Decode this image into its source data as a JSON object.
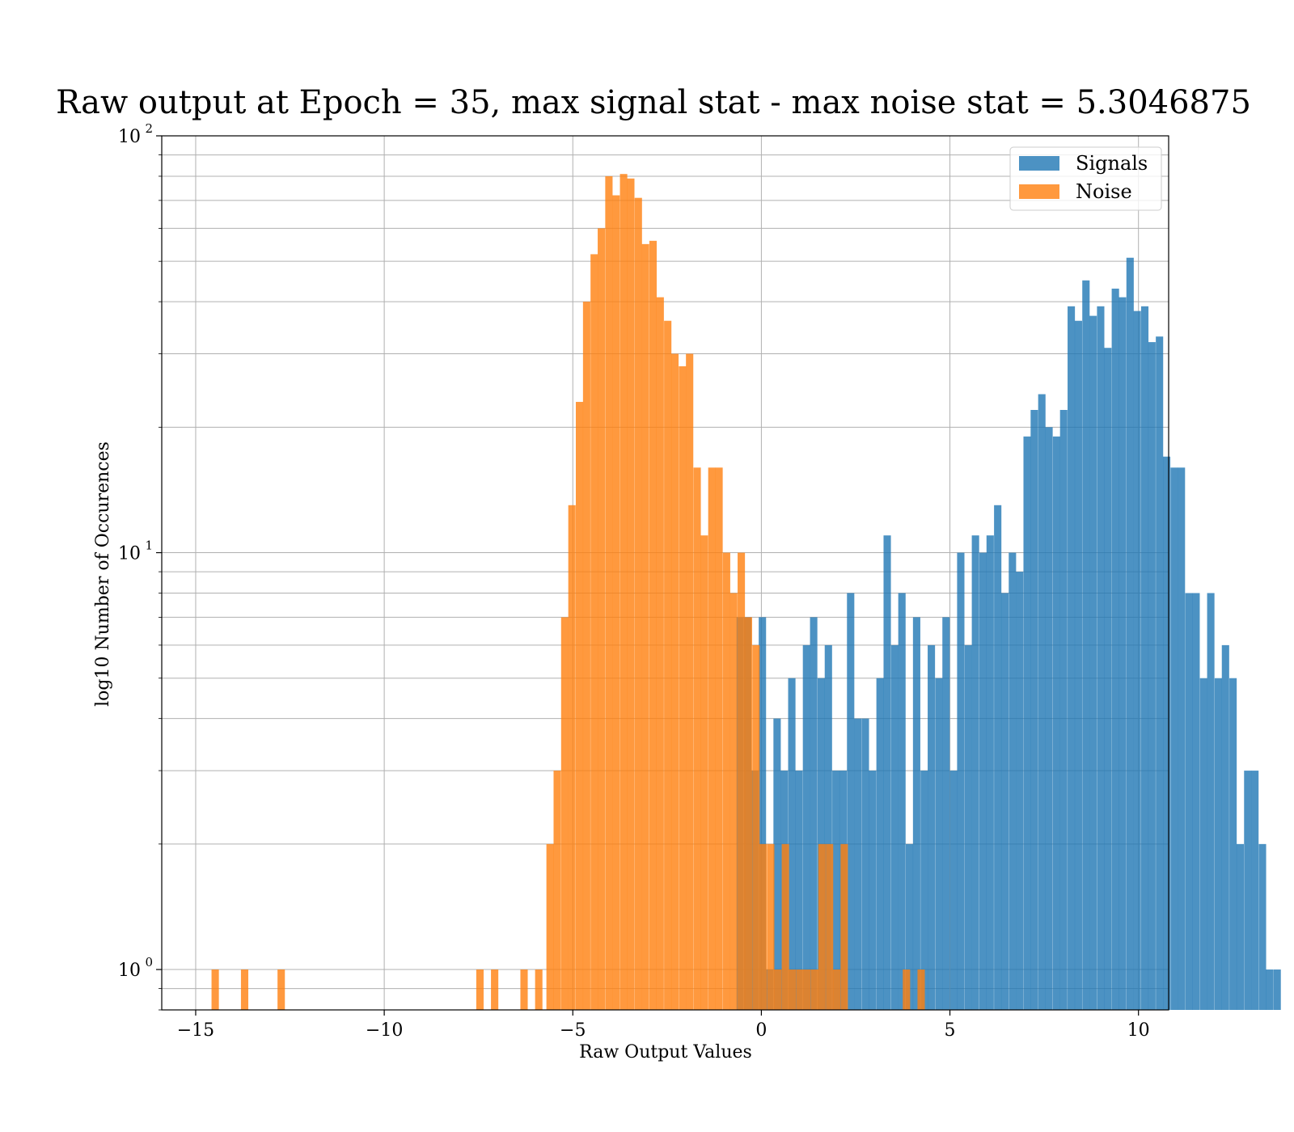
{
  "chart_data": {
    "type": "bar",
    "title": "Raw output at Epoch = 35, max signal stat - max noise stat = 5.3046875",
    "xlabel": "Raw Output Values",
    "ylabel": "log10 Number of Occurences",
    "xlim": [
      -15.9,
      10.8
    ],
    "ylim": [
      0.8,
      100
    ],
    "yscale": "log",
    "grid": true,
    "legend_position": "top-right",
    "xticks": [
      -15,
      -10,
      -5,
      0,
      5,
      10
    ],
    "xtick_labels": [
      "−15",
      "−10",
      "−5",
      "0",
      "5",
      "10"
    ],
    "yticks": [
      1,
      10,
      100
    ],
    "ytick_labels": [
      {
        "base": "10",
        "exp": "0"
      },
      {
        "base": "10",
        "exp": "1"
      },
      {
        "base": "10",
        "exp": "2"
      }
    ],
    "bin_width": 0.195,
    "series": [
      {
        "name": "Signals",
        "color": "#1f77b4",
        "bins": [
          [
            -0.66,
            7
          ],
          [
            -0.46,
            7
          ],
          [
            -0.27,
            3
          ],
          [
            -0.07,
            7
          ],
          [
            0.12,
            1
          ],
          [
            0.32,
            4
          ],
          [
            0.51,
            3
          ],
          [
            0.71,
            5
          ],
          [
            0.9,
            3
          ],
          [
            1.1,
            6
          ],
          [
            1.29,
            7
          ],
          [
            1.49,
            5
          ],
          [
            1.68,
            6
          ],
          [
            1.88,
            3
          ],
          [
            2.07,
            3
          ],
          [
            2.27,
            8
          ],
          [
            2.46,
            4
          ],
          [
            2.66,
            4
          ],
          [
            2.85,
            3
          ],
          [
            3.05,
            5
          ],
          [
            3.24,
            11
          ],
          [
            3.44,
            6
          ],
          [
            3.63,
            8
          ],
          [
            3.83,
            2
          ],
          [
            4.02,
            7
          ],
          [
            4.22,
            3
          ],
          [
            4.41,
            6
          ],
          [
            4.61,
            5
          ],
          [
            4.8,
            7
          ],
          [
            5.0,
            3
          ],
          [
            5.19,
            10
          ],
          [
            5.39,
            6
          ],
          [
            5.58,
            11
          ],
          [
            5.78,
            10
          ],
          [
            5.97,
            11
          ],
          [
            6.17,
            13
          ],
          [
            6.36,
            8
          ],
          [
            6.56,
            10
          ],
          [
            6.75,
            9
          ],
          [
            6.95,
            19
          ],
          [
            7.14,
            22
          ],
          [
            7.34,
            24
          ],
          [
            7.53,
            20
          ],
          [
            7.73,
            19
          ],
          [
            7.92,
            22
          ],
          [
            8.12,
            39
          ],
          [
            8.31,
            36
          ],
          [
            8.51,
            45
          ],
          [
            8.7,
            37
          ],
          [
            8.9,
            39
          ],
          [
            9.09,
            31
          ],
          [
            9.29,
            43
          ],
          [
            9.48,
            41
          ],
          [
            9.68,
            51
          ],
          [
            9.87,
            38
          ],
          [
            10.07,
            39
          ],
          [
            10.26,
            32
          ],
          [
            10.46,
            33
          ],
          [
            10.65,
            17
          ],
          [
            10.85,
            16
          ],
          [
            11.04,
            16
          ],
          [
            11.24,
            8
          ],
          [
            11.43,
            8
          ],
          [
            11.63,
            5
          ],
          [
            11.82,
            8
          ],
          [
            12.02,
            5
          ],
          [
            12.21,
            6
          ],
          [
            12.41,
            5
          ],
          [
            12.6,
            2
          ],
          [
            12.8,
            3
          ],
          [
            12.99,
            3
          ],
          [
            13.19,
            2
          ],
          [
            13.38,
            1
          ],
          [
            13.58,
            1
          ]
        ]
      },
      {
        "name": "Noise",
        "color": "#ff7f0e",
        "bins": [
          [
            -14.58,
            1
          ],
          [
            -13.8,
            1
          ],
          [
            -12.83,
            1
          ],
          [
            -7.56,
            1
          ],
          [
            -7.17,
            1
          ],
          [
            -6.39,
            1
          ],
          [
            -6.0,
            1
          ],
          [
            -5.7,
            2
          ],
          [
            -5.51,
            3
          ],
          [
            -5.31,
            7
          ],
          [
            -5.12,
            13
          ],
          [
            -4.92,
            23
          ],
          [
            -4.73,
            40
          ],
          [
            -4.53,
            52
          ],
          [
            -4.34,
            60
          ],
          [
            -4.14,
            80
          ],
          [
            -3.95,
            72
          ],
          [
            -3.75,
            81
          ],
          [
            -3.56,
            79
          ],
          [
            -3.36,
            71
          ],
          [
            -3.17,
            55
          ],
          [
            -2.97,
            56
          ],
          [
            -2.78,
            41
          ],
          [
            -2.58,
            36
          ],
          [
            -2.39,
            30
          ],
          [
            -2.19,
            28
          ],
          [
            -2.0,
            30
          ],
          [
            -1.8,
            16
          ],
          [
            -1.61,
            11
          ],
          [
            -1.41,
            16
          ],
          [
            -1.22,
            16
          ],
          [
            -1.02,
            10
          ],
          [
            -0.83,
            8
          ],
          [
            -0.63,
            10
          ],
          [
            -0.44,
            7
          ],
          [
            -0.24,
            6
          ],
          [
            -0.05,
            2
          ],
          [
            0.15,
            2
          ],
          [
            0.34,
            1
          ],
          [
            0.54,
            2
          ],
          [
            0.73,
            1
          ],
          [
            0.93,
            1
          ],
          [
            1.12,
            1
          ],
          [
            1.32,
            1
          ],
          [
            1.51,
            2
          ],
          [
            1.71,
            2
          ],
          [
            1.9,
            1
          ],
          [
            2.1,
            2
          ],
          [
            3.75,
            1
          ],
          [
            4.14,
            1
          ]
        ]
      }
    ]
  }
}
